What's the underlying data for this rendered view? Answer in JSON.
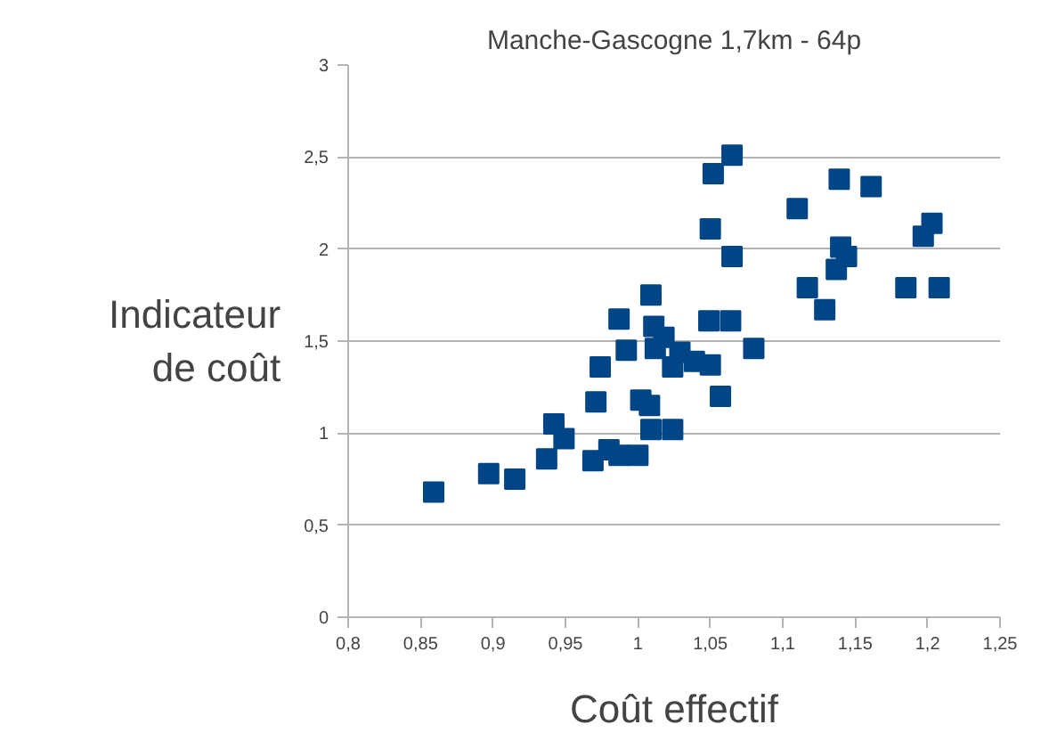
{
  "chart_data": {
    "type": "scatter",
    "title": "Manche-Gascogne 1,7km - 64p",
    "xlabel": "Coût effectif",
    "ylabel": "Indicateur de coût",
    "x": [
      0.859,
      0.897,
      0.915,
      0.937,
      0.942,
      0.949,
      0.969,
      0.971,
      0.974,
      0.98,
      0.987,
      0.987,
      0.992,
      1.0,
      1.002,
      1.008,
      1.009,
      1.009,
      1.011,
      1.012,
      1.018,
      1.024,
      1.024,
      1.029,
      1.039,
      1.05,
      1.049,
      1.057,
      1.064,
      1.08,
      1.052,
      1.065,
      1.05,
      1.065,
      1.11,
      1.117,
      1.129,
      1.137,
      1.139,
      1.14,
      1.144,
      1.161,
      1.185,
      1.197,
      1.203,
      1.208
    ],
    "series": [
      {
        "color": "#004586",
        "values": [
          0.68,
          0.78,
          0.75,
          0.86,
          1.05,
          0.97,
          0.85,
          1.17,
          1.36,
          0.91,
          0.88,
          1.62,
          1.45,
          0.88,
          1.18,
          1.15,
          1.02,
          1.75,
          1.58,
          1.46,
          1.52,
          1.02,
          1.36,
          1.44,
          1.39,
          1.37,
          1.61,
          1.2,
          1.61,
          1.46,
          2.41,
          2.51,
          2.11,
          1.96,
          2.22,
          1.79,
          1.67,
          1.89,
          2.38,
          2.01,
          1.96,
          2.34,
          1.79,
          2.07,
          2.14,
          1.79
        ]
      }
    ],
    "xlim": [
      0.8,
      1.25
    ],
    "ylim": [
      0,
      3
    ],
    "xticks": [
      {
        "value": 0.8,
        "label": "0,8"
      },
      {
        "value": 0.85,
        "label": "0,85"
      },
      {
        "value": 0.9,
        "label": "0,9"
      },
      {
        "value": 0.95,
        "label": "0,95"
      },
      {
        "value": 1,
        "label": "1"
      },
      {
        "value": 1.05,
        "label": "1,05"
      },
      {
        "value": 1.1,
        "label": "1,1"
      },
      {
        "value": 1.15,
        "label": "1,15"
      },
      {
        "value": 1.2,
        "label": "1,2"
      },
      {
        "value": 1.25,
        "label": "1,25"
      }
    ],
    "yticks": [
      0,
      {
        "value": 0.5,
        "label": "0,5"
      },
      1,
      {
        "value": 1.5,
        "label": "1,5"
      },
      2,
      {
        "value": 2.5,
        "label": "2,5"
      },
      3
    ],
    "grid": "y",
    "marker": "square"
  }
}
